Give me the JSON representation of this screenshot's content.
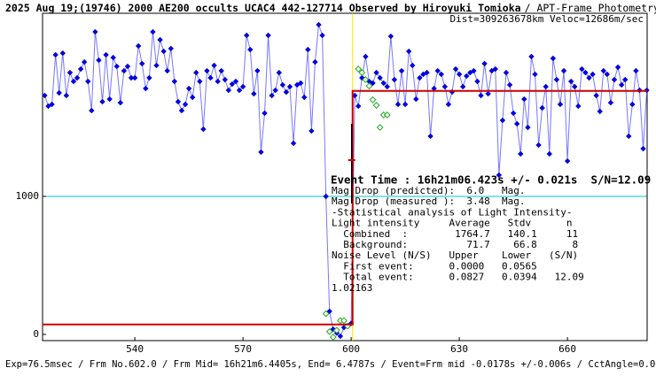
{
  "chart_data": {
    "type": "line",
    "title": "2025 Aug 19;(19746) 2000 AE200 occults UCAC4 442-127714 Observed by Hiroyuki Tomioka",
    "subtitle": "/ APT-Frame Photometry /",
    "subtitle2": "Dist=309263678km Veloc=12686m/sec",
    "footer": "Exp=76.5msec / Frm No.602.0 / Frm Mid= 16h21m6.4405s, End= 6.4787s / Event=Frm mid -0.0178s +/-0.006s / CctAngle=0.0deg",
    "xlim": [
      514.4,
      682.1
    ],
    "ylim": [
      -45,
      2327
    ],
    "xticks": [
      540,
      570,
      600,
      630,
      660
    ],
    "yticks": [
      0,
      1000
    ],
    "hline": {
      "value": 1000,
      "color": "#00c8c8"
    },
    "series": [
      {
        "color": "#0000dd",
        "line_color": "#7777ff",
        "x": [
          515,
          516,
          517,
          518,
          519,
          520,
          521,
          522,
          523,
          524,
          525,
          526,
          527,
          528,
          529,
          530,
          531,
          532,
          533,
          534,
          535,
          536,
          537,
          538,
          539,
          540,
          541,
          542,
          543,
          544,
          545,
          546,
          547,
          548,
          549,
          550,
          551,
          552,
          553,
          554,
          555,
          556,
          557,
          558,
          559,
          560,
          561,
          562,
          563,
          564,
          565,
          566,
          567,
          568,
          569,
          570,
          571,
          572,
          573,
          574,
          575,
          576,
          577,
          578,
          579,
          580,
          581,
          582,
          583,
          584,
          585,
          586,
          587,
          588,
          589,
          590,
          591,
          592,
          593,
          594,
          595,
          596,
          597,
          598,
          599,
          600,
          601,
          602,
          603,
          604,
          605,
          606,
          607,
          608,
          609,
          610,
          611,
          612,
          613,
          614,
          615,
          616,
          617,
          618,
          619,
          620,
          621,
          622,
          623,
          624,
          625,
          626,
          627,
          628,
          629,
          630,
          631,
          632,
          633,
          634,
          635,
          636,
          637,
          638,
          639,
          640,
          641,
          642,
          643,
          644,
          645,
          646,
          647,
          648,
          649,
          650,
          651,
          652,
          653,
          654,
          655,
          656,
          657,
          658,
          659,
          660,
          661,
          662,
          663,
          664,
          665,
          666,
          667,
          668,
          669,
          670,
          671,
          672,
          673,
          674,
          675,
          676,
          677,
          678,
          679,
          680,
          681,
          682
        ],
        "values": [
          1731,
          1654,
          1667,
          2026,
          1750,
          2038,
          1731,
          1897,
          1833,
          1859,
          1923,
          1974,
          1833,
          1622,
          2192,
          1987,
          1686,
          2026,
          1705,
          2006,
          1942,
          1679,
          1910,
          1942,
          1859,
          1859,
          2090,
          1962,
          1782,
          1859,
          2192,
          1949,
          2135,
          2051,
          1910,
          2071,
          1833,
          1686,
          1622,
          1667,
          1782,
          1718,
          1897,
          1833,
          1487,
          1910,
          1859,
          1949,
          1833,
          1910,
          1846,
          1769,
          1814,
          1833,
          1769,
          1795,
          2167,
          2064,
          1744,
          1910,
          1321,
          1603,
          2167,
          1731,
          1769,
          1897,
          1808,
          1756,
          1795,
          1385,
          1808,
          1821,
          1718,
          2064,
          1474,
          1974,
          2244,
          2167,
          1000,
          167,
          38,
          10,
          -13,
          50,
          60,
          80,
          1731,
          1654,
          1859,
          2013,
          1833,
          1821,
          1897,
          1859,
          1821,
          1795,
          2160,
          1846,
          1667,
          1910,
          1667,
          2051,
          1949,
          1705,
          1859,
          1885,
          1897,
          1436,
          1782,
          1910,
          1885,
          1795,
          1667,
          1757,
          1923,
          1885,
          1795,
          1872,
          1897,
          1910,
          1833,
          1731,
          1962,
          1744,
          1910,
          1923,
          1154,
          1551,
          1897,
          1808,
          1603,
          1526,
          1308,
          1705,
          1500,
          2013,
          1885,
          1372,
          1641,
          1795,
          1308,
          2000,
          1846,
          1667,
          1910,
          1256,
          1833,
          1795,
          1654,
          1923,
          1897,
          1859,
          1885,
          1731,
          1616,
          1910,
          1885,
          1679,
          1846,
          1936,
          1808,
          1846,
          1436,
          1667,
          1910,
          1769,
          1346,
          1769
        ]
      },
      {
        "color": "#22aa22",
        "line_color": "none",
        "x": [
          593,
          594,
          595,
          596,
          597,
          598,
          599,
          602,
          603,
          604,
          605,
          606,
          607,
          608,
          609,
          610
        ],
        "values": [
          150,
          20,
          -20,
          30,
          100,
          100,
          60,
          1923,
          1897,
          1846,
          1800,
          1700,
          1660,
          1500,
          1590,
          1590
        ]
      }
    ],
    "fit": {
      "color": "#cc0000",
      "event_x": 600.4,
      "event_y": 1263,
      "event_low": 949,
      "event_high": 1526,
      "event_line_color": "#ffe000"
    },
    "stats": {
      "combined": 1764.7,
      "background": 71.7
    },
    "annotations": [
      "Event Time : 16h21m06.423s +/- 0.021s  S/N=12.09",
      "Mag Drop (predicted):  6.0   Mag.",
      "Mag Drop (measured ):  3.48  Mag.",
      "-Statistical analysis of Light Intensity-",
      "Light intensity     Average   Stdv      n",
      "  Combined  :        1764.7   140.1     11",
      "  Background:          71.7    66.8      8",
      "Noise Level (N/S)   Upper    Lower   (S/N)",
      "  First event:      0.0000   0.0565",
      "  Total event:      0.0827   0.0394   12.09",
      "1.02163"
    ]
  }
}
